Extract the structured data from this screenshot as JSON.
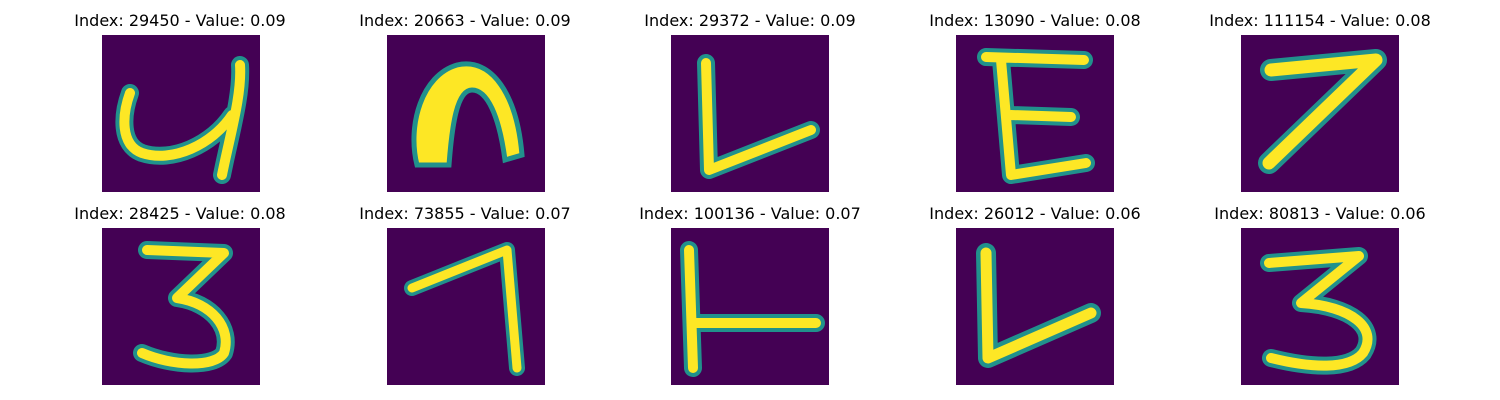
{
  "panels": [
    {
      "title": "Index: 29450 - Value: 0.09",
      "glyph": "4"
    },
    {
      "title": "Index: 20663 - Value: 0.09",
      "glyph": "n"
    },
    {
      "title": "Index: 29372 - Value: 0.09",
      "glyph": "L"
    },
    {
      "title": "Index: 13090 - Value: 0.08",
      "glyph": "E"
    },
    {
      "title": "Index: 111154 - Value: 0.08",
      "glyph": "7"
    },
    {
      "title": "Index: 28425 - Value: 0.08",
      "glyph": "3"
    },
    {
      "title": "Index: 73855 - Value: 0.07",
      "glyph": "7"
    },
    {
      "title": "Index: 100136 - Value: 0.07",
      "glyph": "L"
    },
    {
      "title": "Index: 26012 - Value: 0.06",
      "glyph": "L"
    },
    {
      "title": "Index: 80813 - Value: 0.06",
      "glyph": "3"
    }
  ],
  "colors": {
    "background": "#440154",
    "stroke": "#fde725",
    "edge": "#21918c"
  }
}
